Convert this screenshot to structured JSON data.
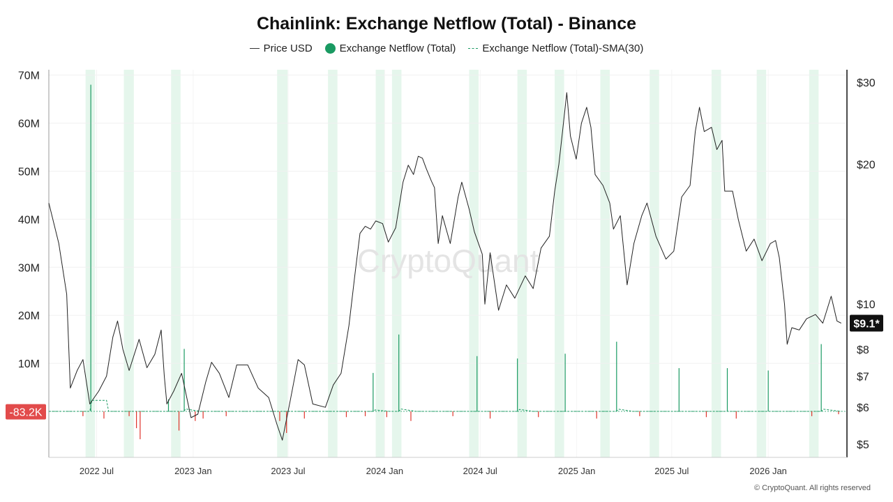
{
  "chart_data": {
    "type": "line",
    "title": "Chainlink: Exchange Netflow (Total) - Binance",
    "legend": [
      {
        "label": "Price USD",
        "kind": "line",
        "color": "#333333"
      },
      {
        "label": "Exchange Netflow (Total)",
        "kind": "dot",
        "color": "#1a9a62"
      },
      {
        "label": "Exchange Netflow (Total)-SMA(30)",
        "kind": "dashed",
        "color": "#1a9a62"
      }
    ],
    "legend_position": "top-center",
    "grid": true,
    "x_range": [
      "2022-04-01",
      "2026-05-31"
    ],
    "x_ticks": [
      {
        "date": "2022-07-01",
        "label": "2022 Jul"
      },
      {
        "date": "2023-01-01",
        "label": "2023 Jan"
      },
      {
        "date": "2023-07-01",
        "label": "2023 Jul"
      },
      {
        "date": "2024-01-01",
        "label": "2024 Jan"
      },
      {
        "date": "2024-07-01",
        "label": "2024 Jul"
      },
      {
        "date": "2025-01-01",
        "label": "2025 Jan"
      },
      {
        "date": "2025-07-01",
        "label": "2025 Jul"
      },
      {
        "date": "2026-01-01",
        "label": "2026 Jan"
      }
    ],
    "y_left": {
      "label": "",
      "range": [
        -9000000,
        71000000
      ],
      "ticks": [
        {
          "value": 10000000,
          "label": "10M"
        },
        {
          "value": 20000000,
          "label": "20M"
        },
        {
          "value": 30000000,
          "label": "30M"
        },
        {
          "value": 40000000,
          "label": "40M"
        },
        {
          "value": 50000000,
          "label": "50M"
        },
        {
          "value": 60000000,
          "label": "60M"
        },
        {
          "value": 70000000,
          "label": "70M"
        }
      ]
    },
    "y_right": {
      "label": "",
      "scale": "log",
      "range": [
        4.7,
        31.5
      ],
      "ticks": [
        {
          "value": 30,
          "label": "$30"
        },
        {
          "value": 20,
          "label": "$20"
        },
        {
          "value": 10,
          "label": "$10"
        },
        {
          "value": 8,
          "label": "$8"
        },
        {
          "value": 7,
          "label": "$7"
        },
        {
          "value": 6,
          "label": "$6"
        },
        {
          "value": 5,
          "label": "$5"
        }
      ]
    },
    "current_price_label": "$9.1*",
    "current_price_value": 9.1,
    "current_netflow_label": "-83.2K",
    "current_netflow_value": -83200,
    "shaded_periods": [
      [
        "2022-06-10",
        "2022-06-28"
      ],
      [
        "2022-08-22",
        "2022-09-10"
      ],
      [
        "2022-11-20",
        "2022-12-08"
      ],
      [
        "2023-06-10",
        "2023-06-30"
      ],
      [
        "2023-09-15",
        "2023-10-03"
      ],
      [
        "2023-12-15",
        "2024-01-01"
      ],
      [
        "2024-01-15",
        "2024-02-02"
      ],
      [
        "2024-06-10",
        "2024-06-28"
      ],
      [
        "2024-09-10",
        "2024-09-28"
      ],
      [
        "2024-11-20",
        "2024-12-08"
      ],
      [
        "2025-02-15",
        "2025-03-05"
      ],
      [
        "2025-05-20",
        "2025-06-07"
      ],
      [
        "2025-09-15",
        "2025-10-03"
      ],
      [
        "2025-12-10",
        "2025-12-28"
      ],
      [
        "2026-03-20",
        "2026-04-07"
      ]
    ],
    "series": [
      {
        "name": "Price USD",
        "axis": "right",
        "points": [
          [
            "2022-04-01",
            16.5
          ],
          [
            "2022-04-20",
            13.5
          ],
          [
            "2022-05-05",
            10.5
          ],
          [
            "2022-05-12",
            6.6
          ],
          [
            "2022-05-25",
            7.2
          ],
          [
            "2022-06-05",
            7.6
          ],
          [
            "2022-06-18",
            6.1
          ],
          [
            "2022-07-05",
            6.5
          ],
          [
            "2022-07-20",
            7.0
          ],
          [
            "2022-08-01",
            8.5
          ],
          [
            "2022-08-10",
            9.2
          ],
          [
            "2022-08-20",
            8.0
          ],
          [
            "2022-09-01",
            7.2
          ],
          [
            "2022-09-20",
            8.4
          ],
          [
            "2022-10-05",
            7.3
          ],
          [
            "2022-10-20",
            7.8
          ],
          [
            "2022-11-01",
            8.8
          ],
          [
            "2022-11-07",
            7.0
          ],
          [
            "2022-11-12",
            6.1
          ],
          [
            "2022-11-25",
            6.5
          ],
          [
            "2022-12-10",
            7.1
          ],
          [
            "2022-12-28",
            5.7
          ],
          [
            "2023-01-10",
            5.8
          ],
          [
            "2023-01-25",
            6.8
          ],
          [
            "2023-02-05",
            7.5
          ],
          [
            "2023-02-20",
            7.1
          ],
          [
            "2023-03-10",
            6.3
          ],
          [
            "2023-03-25",
            7.4
          ],
          [
            "2023-04-15",
            7.4
          ],
          [
            "2023-05-05",
            6.6
          ],
          [
            "2023-05-25",
            6.3
          ],
          [
            "2023-06-10",
            5.5
          ],
          [
            "2023-06-20",
            5.1
          ],
          [
            "2023-07-05",
            6.2
          ],
          [
            "2023-07-20",
            7.6
          ],
          [
            "2023-08-01",
            7.4
          ],
          [
            "2023-08-17",
            6.1
          ],
          [
            "2023-09-10",
            6.0
          ],
          [
            "2023-09-25",
            6.7
          ],
          [
            "2023-10-10",
            7.1
          ],
          [
            "2023-10-25",
            9.0
          ],
          [
            "2023-11-05",
            11.5
          ],
          [
            "2023-11-15",
            14.2
          ],
          [
            "2023-11-25",
            14.7
          ],
          [
            "2023-12-05",
            14.5
          ],
          [
            "2023-12-15",
            15.1
          ],
          [
            "2023-12-28",
            14.9
          ],
          [
            "2024-01-08",
            13.6
          ],
          [
            "2024-01-22",
            14.6
          ],
          [
            "2024-02-05",
            18.3
          ],
          [
            "2024-02-15",
            19.9
          ],
          [
            "2024-02-25",
            19.0
          ],
          [
            "2024-03-05",
            20.8
          ],
          [
            "2024-03-13",
            20.6
          ],
          [
            "2024-03-20",
            19.6
          ],
          [
            "2024-03-30",
            18.4
          ],
          [
            "2024-04-05",
            17.8
          ],
          [
            "2024-04-12",
            13.5
          ],
          [
            "2024-04-20",
            15.5
          ],
          [
            "2024-05-05",
            13.5
          ],
          [
            "2024-05-20",
            17.0
          ],
          [
            "2024-05-27",
            18.3
          ],
          [
            "2024-06-10",
            16.0
          ],
          [
            "2024-06-20",
            14.3
          ],
          [
            "2024-07-05",
            12.8
          ],
          [
            "2024-07-10",
            10.0
          ],
          [
            "2024-07-20",
            12.9
          ],
          [
            "2024-08-05",
            9.7
          ],
          [
            "2024-08-20",
            11.0
          ],
          [
            "2024-09-05",
            10.3
          ],
          [
            "2024-09-25",
            11.5
          ],
          [
            "2024-10-10",
            10.8
          ],
          [
            "2024-10-25",
            13.2
          ],
          [
            "2024-11-10",
            14.0
          ],
          [
            "2024-11-20",
            17.5
          ],
          [
            "2024-11-28",
            20.0
          ],
          [
            "2024-12-05",
            23.5
          ],
          [
            "2024-12-13",
            28.5
          ],
          [
            "2024-12-20",
            23.0
          ],
          [
            "2024-12-31",
            20.5
          ],
          [
            "2025-01-10",
            24.5
          ],
          [
            "2025-01-20",
            26.5
          ],
          [
            "2025-01-28",
            24.0
          ],
          [
            "2025-02-05",
            19.0
          ],
          [
            "2025-02-20",
            18.0
          ],
          [
            "2025-03-05",
            16.5
          ],
          [
            "2025-03-12",
            14.5
          ],
          [
            "2025-03-25",
            15.5
          ],
          [
            "2025-04-07",
            11.0
          ],
          [
            "2025-04-20",
            13.5
          ],
          [
            "2025-05-05",
            15.5
          ],
          [
            "2025-05-15",
            16.5
          ],
          [
            "2025-06-01",
            14.0
          ],
          [
            "2025-06-20",
            12.5
          ],
          [
            "2025-07-05",
            13.0
          ],
          [
            "2025-07-20",
            17.0
          ],
          [
            "2025-08-05",
            18.0
          ],
          [
            "2025-08-15",
            23.5
          ],
          [
            "2025-08-23",
            26.5
          ],
          [
            "2025-09-01",
            23.5
          ],
          [
            "2025-09-15",
            24.0
          ],
          [
            "2025-09-25",
            21.5
          ],
          [
            "2025-10-05",
            22.5
          ],
          [
            "2025-10-10",
            17.5
          ],
          [
            "2025-10-25",
            17.5
          ],
          [
            "2025-11-05",
            15.2
          ],
          [
            "2025-11-20",
            13.0
          ],
          [
            "2025-12-05",
            13.8
          ],
          [
            "2025-12-20",
            12.4
          ],
          [
            "2026-01-05",
            13.5
          ],
          [
            "2026-01-15",
            13.7
          ],
          [
            "2026-01-22",
            12.6
          ],
          [
            "2026-02-01",
            10.0
          ],
          [
            "2026-02-06",
            8.2
          ],
          [
            "2026-02-15",
            8.9
          ],
          [
            "2026-03-01",
            8.8
          ],
          [
            "2026-03-15",
            9.3
          ],
          [
            "2026-04-01",
            9.5
          ],
          [
            "2026-04-15",
            9.1
          ],
          [
            "2026-05-01",
            10.4
          ],
          [
            "2026-05-12",
            9.2
          ],
          [
            "2026-05-20",
            9.1
          ]
        ]
      },
      {
        "name": "Exchange Netflow (Total)",
        "axis": "left",
        "spikes": [
          [
            "2022-06-20",
            68000000
          ],
          [
            "2022-06-05",
            -1000000
          ],
          [
            "2022-07-15",
            -1500000
          ],
          [
            "2022-09-01",
            -1000000
          ],
          [
            "2022-09-15",
            -3500000
          ],
          [
            "2022-09-22",
            -5800000
          ],
          [
            "2022-11-15",
            2500000
          ],
          [
            "2022-12-05",
            -4000000
          ],
          [
            "2022-12-15",
            13000000
          ],
          [
            "2023-01-05",
            -2000000
          ],
          [
            "2023-01-20",
            -1500000
          ],
          [
            "2023-03-05",
            -1000000
          ],
          [
            "2023-06-15",
            -2000000
          ],
          [
            "2023-06-28",
            -4500000
          ],
          [
            "2023-08-01",
            -1500000
          ],
          [
            "2023-10-20",
            -1200000
          ],
          [
            "2023-11-25",
            -1000000
          ],
          [
            "2023-12-10",
            8000000
          ],
          [
            "2024-01-05",
            -1200000
          ],
          [
            "2024-01-28",
            16000000
          ],
          [
            "2024-02-20",
            -2000000
          ],
          [
            "2024-05-10",
            -1000000
          ],
          [
            "2024-06-25",
            11500000
          ],
          [
            "2024-07-20",
            -1500000
          ],
          [
            "2024-09-10",
            11000000
          ],
          [
            "2024-10-20",
            -1200000
          ],
          [
            "2024-12-10",
            12000000
          ],
          [
            "2025-02-08",
            -1500000
          ],
          [
            "2025-03-18",
            14500000
          ],
          [
            "2025-05-01",
            -1000000
          ],
          [
            "2025-07-15",
            9000000
          ],
          [
            "2025-09-05",
            -1200000
          ],
          [
            "2025-10-15",
            9000000
          ],
          [
            "2025-11-01",
            -1500000
          ],
          [
            "2026-01-01",
            8500000
          ],
          [
            "2026-03-25",
            -1000000
          ],
          [
            "2026-04-12",
            14000000
          ],
          [
            "2026-05-15",
            -600000
          ]
        ]
      },
      {
        "name": "Exchange Netflow (Total)-SMA(30)",
        "axis": "left",
        "points": [
          [
            "2022-04-01",
            0
          ],
          [
            "2022-06-18",
            0
          ],
          [
            "2022-06-22",
            2300000
          ],
          [
            "2022-07-20",
            2300000
          ],
          [
            "2022-07-24",
            0
          ],
          [
            "2022-12-14",
            0
          ],
          [
            "2022-12-18",
            500000
          ],
          [
            "2023-01-15",
            0
          ],
          [
            "2023-12-10",
            0
          ],
          [
            "2023-12-14",
            300000
          ],
          [
            "2024-01-10",
            0
          ],
          [
            "2024-01-28",
            0
          ],
          [
            "2024-02-01",
            500000
          ],
          [
            "2024-03-01",
            0
          ],
          [
            "2024-09-10",
            0
          ],
          [
            "2024-09-14",
            400000
          ],
          [
            "2024-10-10",
            0
          ],
          [
            "2025-03-18",
            0
          ],
          [
            "2025-03-22",
            450000
          ],
          [
            "2025-04-18",
            0
          ],
          [
            "2026-04-12",
            0
          ],
          [
            "2026-04-16",
            450000
          ],
          [
            "2026-05-20",
            0
          ]
        ]
      }
    ]
  },
  "watermark": "CryptoQuant",
  "copyright": "© CryptoQuant. All rights reserved"
}
